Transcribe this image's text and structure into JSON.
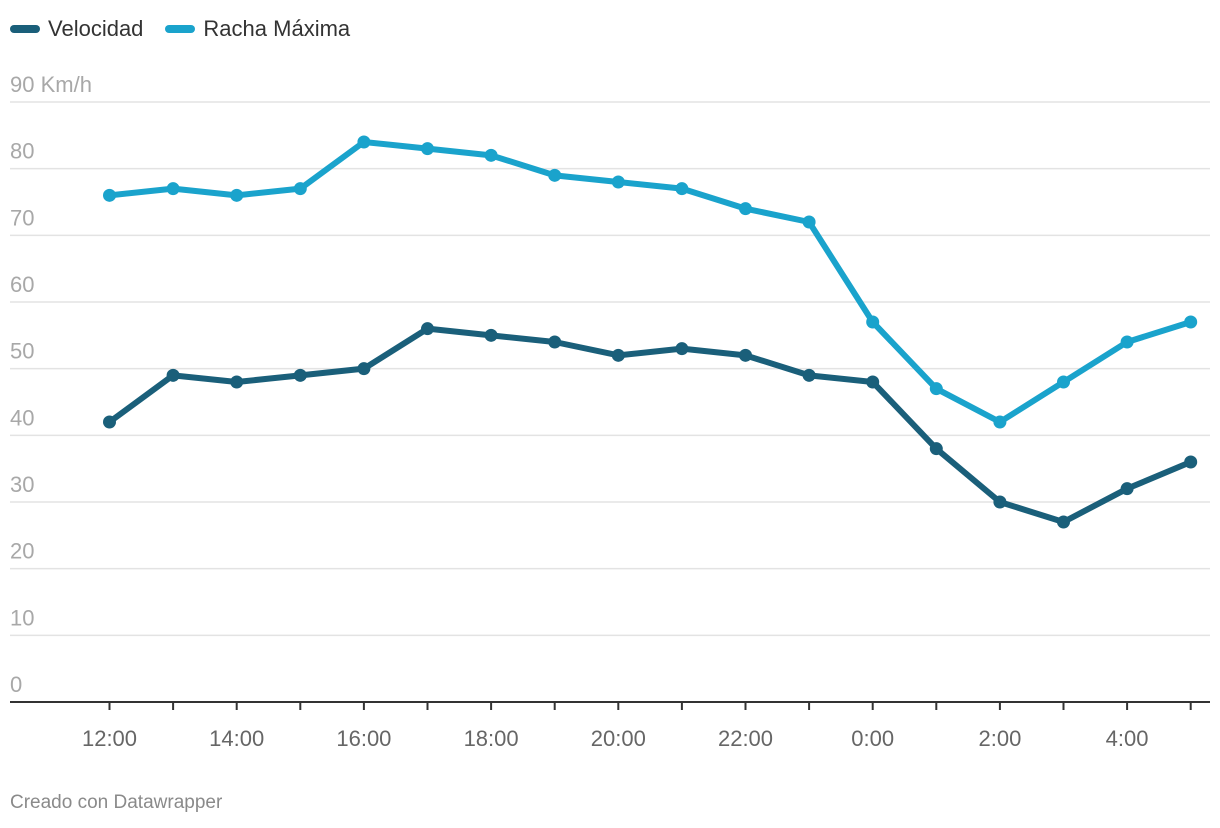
{
  "chart_data": {
    "type": "line",
    "x": [
      "12:00",
      "13:00",
      "14:00",
      "15:00",
      "16:00",
      "17:00",
      "18:00",
      "19:00",
      "20:00",
      "21:00",
      "22:00",
      "23:00",
      "0:00",
      "1:00",
      "2:00",
      "3:00",
      "4:00",
      "5:00"
    ],
    "x_tick_labels": [
      "12:00",
      "14:00",
      "16:00",
      "18:00",
      "20:00",
      "22:00",
      "0:00",
      "2:00",
      "4:00"
    ],
    "series": [
      {
        "name": "Velocidad",
        "color": "#1a5f7a",
        "values": [
          42,
          49,
          48,
          49,
          50,
          56,
          55,
          54,
          52,
          53,
          52,
          49,
          48,
          38,
          30,
          27,
          32,
          36
        ]
      },
      {
        "name": "Racha Máxima",
        "color": "#1aa3cc",
        "values": [
          76,
          77,
          76,
          77,
          84,
          83,
          82,
          79,
          78,
          77,
          74,
          72,
          57,
          47,
          42,
          48,
          54,
          57
        ]
      }
    ],
    "y_ticks": [
      0,
      10,
      20,
      30,
      40,
      50,
      60,
      70,
      80,
      90
    ],
    "y_unit_label": "90 Km/h",
    "ylim": [
      0,
      90
    ],
    "grid": true,
    "legend_placement": "top-left"
  },
  "footer": {
    "credit": "Creado con Datawrapper"
  }
}
